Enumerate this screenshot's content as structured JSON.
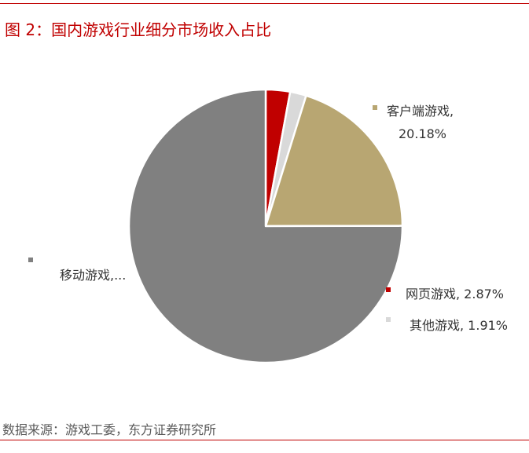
{
  "title": "图 2：国内游戏行业细分市场收入占比",
  "source": "数据来源：游戏工委，东方证券研究所",
  "colors": {
    "accent": "#c00000"
  },
  "chart_data": {
    "type": "pie",
    "start_angle_deg": 0,
    "direction": "clockwise",
    "slices": [
      {
        "name": "网页游戏",
        "value": 2.87,
        "color": "#c00000",
        "label_line1": "网页游戏, 2.87%",
        "label_line2": ""
      },
      {
        "name": "其他游戏",
        "value": 1.91,
        "color": "#d9d9d9",
        "label_line1": "其他游戏, 1.91%",
        "label_line2": ""
      },
      {
        "name": "客户端游戏",
        "value": 20.18,
        "color": "#b8a672",
        "label_line1": "客户端游戏,",
        "label_line2": "20.18%"
      },
      {
        "name": "移动游戏",
        "value": 75.04,
        "color": "#808080",
        "label_line1": "移动游戏,...",
        "label_line2": ""
      }
    ],
    "legend": "labels-beside-slices"
  }
}
